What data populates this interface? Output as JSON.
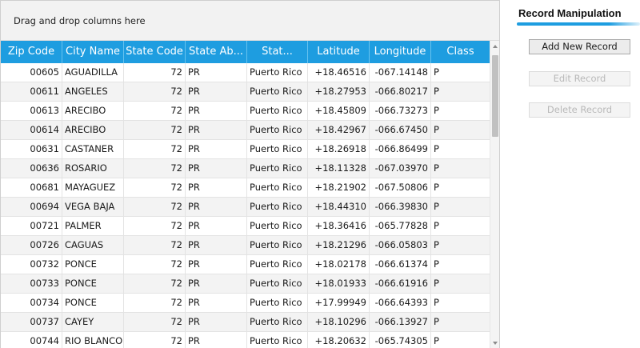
{
  "grid": {
    "group_panel_text": "Drag and drop columns here",
    "columns": [
      "Zip Code",
      "City Name",
      "State Code",
      "State Ab...",
      "Stat...",
      "Latitude",
      "Longitude",
      "Class"
    ],
    "rows": [
      [
        "00605",
        "AGUADILLA",
        "72",
        "PR",
        "Puerto Rico",
        "+18.46516",
        "-067.14148",
        "P"
      ],
      [
        "00611",
        "ANGELES",
        "72",
        "PR",
        "Puerto Rico",
        "+18.27953",
        "-066.80217",
        "P"
      ],
      [
        "00613",
        "ARECIBO",
        "72",
        "PR",
        "Puerto Rico",
        "+18.45809",
        "-066.73273",
        "P"
      ],
      [
        "00614",
        "ARECIBO",
        "72",
        "PR",
        "Puerto Rico",
        "+18.42967",
        "-066.67450",
        "P"
      ],
      [
        "00631",
        "CASTANER",
        "72",
        "PR",
        "Puerto Rico",
        "+18.26918",
        "-066.86499",
        "P"
      ],
      [
        "00636",
        "ROSARIO",
        "72",
        "PR",
        "Puerto Rico",
        "+18.11328",
        "-067.03970",
        "P"
      ],
      [
        "00681",
        "MAYAGUEZ",
        "72",
        "PR",
        "Puerto Rico",
        "+18.21902",
        "-067.50806",
        "P"
      ],
      [
        "00694",
        "VEGA BAJA",
        "72",
        "PR",
        "Puerto Rico",
        "+18.44310",
        "-066.39830",
        "P"
      ],
      [
        "00721",
        "PALMER",
        "72",
        "PR",
        "Puerto Rico",
        "+18.36416",
        "-065.77828",
        "P"
      ],
      [
        "00726",
        "CAGUAS",
        "72",
        "PR",
        "Puerto Rico",
        "+18.21296",
        "-066.05803",
        "P"
      ],
      [
        "00732",
        "PONCE",
        "72",
        "PR",
        "Puerto Rico",
        "+18.02178",
        "-066.61374",
        "P"
      ],
      [
        "00733",
        "PONCE",
        "72",
        "PR",
        "Puerto Rico",
        "+18.01933",
        "-066.61916",
        "P"
      ],
      [
        "00734",
        "PONCE",
        "72",
        "PR",
        "Puerto Rico",
        "+17.99949",
        "-066.64393",
        "P"
      ],
      [
        "00737",
        "CAYEY",
        "72",
        "PR",
        "Puerto Rico",
        "+18.10296",
        "-066.13927",
        "P"
      ],
      [
        "00744",
        "RIO BLANCO",
        "72",
        "PR",
        "Puerto Rico",
        "+18.20632",
        "-065.74305",
        "P"
      ]
    ]
  },
  "side_panel": {
    "title": "Record Manipulation",
    "add_label": "Add New Record",
    "edit_label": "Edit Record",
    "delete_label": "Delete Record"
  },
  "colors": {
    "header_bg": "#1e9de0",
    "accent": "#1e9de0"
  },
  "icons": {
    "scroll_up": "chevron-up-icon",
    "scroll_down": "chevron-down-icon"
  }
}
